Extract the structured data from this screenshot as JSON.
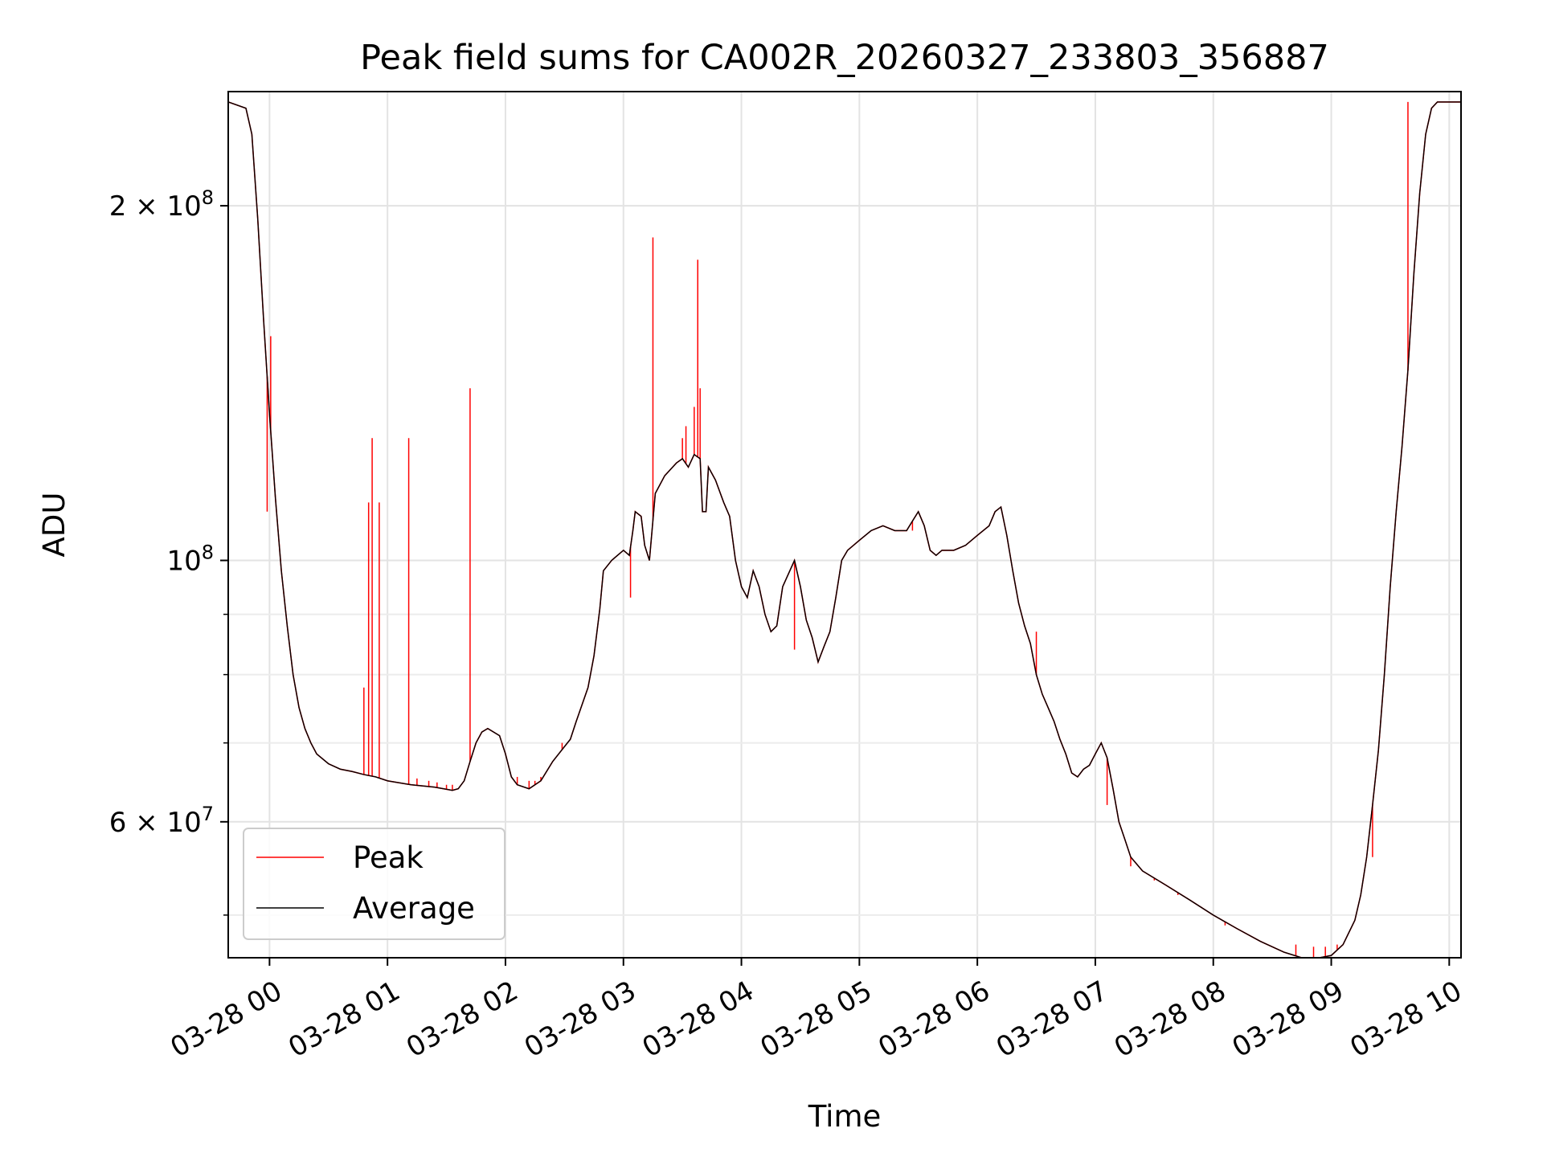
{
  "chart_data": {
    "type": "line",
    "title": "Peak field sums for CA002R_20260327_233803_356887",
    "xlabel": "Time",
    "ylabel": "ADU",
    "y_scale": "log",
    "grid": true,
    "legend_position": "lower-left",
    "xlim": [
      -0.35,
      10.1
    ],
    "ylim": [
      46000000.0,
      250000000.0
    ],
    "x_units": "hours since 2026-03-28 00:00",
    "x_ticks": [
      {
        "value": 0,
        "label": "03-28 00"
      },
      {
        "value": 1,
        "label": "03-28 01"
      },
      {
        "value": 2,
        "label": "03-28 02"
      },
      {
        "value": 3,
        "label": "03-28 03"
      },
      {
        "value": 4,
        "label": "03-28 04"
      },
      {
        "value": 5,
        "label": "03-28 05"
      },
      {
        "value": 6,
        "label": "03-28 06"
      },
      {
        "value": 7,
        "label": "03-28 07"
      },
      {
        "value": 8,
        "label": "03-28 08"
      },
      {
        "value": 9,
        "label": "03-28 09"
      },
      {
        "value": 10,
        "label": "03-28 10"
      }
    ],
    "y_major_ticks": [
      {
        "value": 60000000,
        "mantissa": "6",
        "exponent": "7"
      },
      {
        "value": 100000000,
        "mantissa": "",
        "exponent": "8"
      },
      {
        "value": 200000000,
        "mantissa": "2",
        "exponent": "8"
      }
    ],
    "y_minor_ticks": [
      50000000,
      70000000,
      80000000,
      90000000
    ],
    "series": [
      {
        "name": "Peak",
        "color": "#ff0000",
        "spikes": [
          [
            -0.02,
            110000000.0
          ],
          [
            0.01,
            155000000.0
          ],
          [
            0.2,
            80000000.0
          ],
          [
            0.8,
            78000000.0
          ],
          [
            0.84,
            112000000.0
          ],
          [
            0.87,
            127000000.0
          ],
          [
            0.93,
            112000000.0
          ],
          [
            1.18,
            127000000.0
          ],
          [
            1.25,
            65300000.0
          ],
          [
            1.35,
            65000000.0
          ],
          [
            1.42,
            64800000.0
          ],
          [
            1.5,
            64500000.0
          ],
          [
            1.55,
            64500000.0
          ],
          [
            1.7,
            140000000.0
          ],
          [
            2.1,
            65500000.0
          ],
          [
            2.2,
            65000000.0
          ],
          [
            2.25,
            65000000.0
          ],
          [
            2.3,
            65500000.0
          ],
          [
            2.48,
            70000000.0
          ],
          [
            2.7,
            78000000.0
          ],
          [
            3.06,
            93000000.0
          ],
          [
            3.25,
            188000000.0
          ],
          [
            3.5,
            127000000.0
          ],
          [
            3.53,
            130000000.0
          ],
          [
            3.6,
            135000000.0
          ],
          [
            3.63,
            180000000.0
          ],
          [
            3.65,
            140000000.0
          ],
          [
            4.45,
            84000000.0
          ],
          [
            5.45,
            106000000.0
          ],
          [
            6.5,
            87000000.0
          ],
          [
            7.1,
            62000000.0
          ],
          [
            7.3,
            55000000.0
          ],
          [
            7.5,
            53500000.0
          ],
          [
            7.7,
            52000000.0
          ],
          [
            7.9,
            50800000.0
          ],
          [
            8.1,
            49000000.0
          ],
          [
            8.4,
            47500000.0
          ],
          [
            8.7,
            47200000.0
          ],
          [
            8.85,
            47000000.0
          ],
          [
            8.95,
            47000000.0
          ],
          [
            9.05,
            47200000.0
          ],
          [
            9.35,
            56000000.0
          ],
          [
            9.65,
            245000000.0
          ]
        ]
      },
      {
        "name": "Average",
        "color": "#000000",
        "points": [
          [
            -0.35,
            245000000.0
          ],
          [
            -0.2,
            242000000.0
          ],
          [
            -0.15,
            230000000.0
          ],
          [
            -0.1,
            195000000.0
          ],
          [
            -0.05,
            160000000.0
          ],
          [
            0,
            133000000.0
          ],
          [
            0.05,
            113000000.0
          ],
          [
            0.1,
            98000000.0
          ],
          [
            0.15,
            88000000.0
          ],
          [
            0.2,
            80000000.0
          ],
          [
            0.25,
            75000000.0
          ],
          [
            0.3,
            72000000.0
          ],
          [
            0.35,
            70000000.0
          ],
          [
            0.4,
            68500000.0
          ],
          [
            0.5,
            67200000.0
          ],
          [
            0.6,
            66500000.0
          ],
          [
            0.7,
            66200000.0
          ],
          [
            0.8,
            65800000.0
          ],
          [
            0.9,
            65500000.0
          ],
          [
            1,
            65000000.0
          ],
          [
            1.2,
            64500000.0
          ],
          [
            1.4,
            64200000.0
          ],
          [
            1.55,
            63800000.0
          ],
          [
            1.6,
            64000000.0
          ],
          [
            1.65,
            65000000.0
          ],
          [
            1.7,
            67500000.0
          ],
          [
            1.75,
            70000000.0
          ],
          [
            1.8,
            71500000.0
          ],
          [
            1.85,
            72000000.0
          ],
          [
            1.95,
            71000000.0
          ],
          [
            2,
            68500000.0
          ],
          [
            2.05,
            65500000.0
          ],
          [
            2.1,
            64500000.0
          ],
          [
            2.2,
            64000000.0
          ],
          [
            2.3,
            65000000.0
          ],
          [
            2.4,
            67500000.0
          ],
          [
            2.5,
            69500000.0
          ],
          [
            2.55,
            70500000.0
          ],
          [
            2.6,
            73000000.0
          ],
          [
            2.7,
            78000000.0
          ],
          [
            2.75,
            83000000.0
          ],
          [
            2.8,
            91000000.0
          ],
          [
            2.83,
            98000000.0
          ],
          [
            2.9,
            100000000.0
          ],
          [
            2.95,
            101000000.0
          ],
          [
            3,
            102000000.0
          ],
          [
            3.05,
            101000000.0
          ],
          [
            3.08,
            106000000.0
          ],
          [
            3.1,
            110000000.0
          ],
          [
            3.15,
            109000000.0
          ],
          [
            3.18,
            103000000.0
          ],
          [
            3.22,
            100000000.0
          ],
          [
            3.27,
            114000000.0
          ],
          [
            3.35,
            118000000.0
          ],
          [
            3.45,
            121000000.0
          ],
          [
            3.5,
            122000000.0
          ],
          [
            3.55,
            120000000.0
          ],
          [
            3.6,
            123000000.0
          ],
          [
            3.65,
            122000000.0
          ],
          [
            3.67,
            110000000.0
          ],
          [
            3.7,
            110000000.0
          ],
          [
            3.72,
            120000000.0
          ],
          [
            3.78,
            117000000.0
          ],
          [
            3.85,
            112000000.0
          ],
          [
            3.9,
            109000000.0
          ],
          [
            3.95,
            100000000.0
          ],
          [
            4,
            95000000.0
          ],
          [
            4.05,
            93000000.0
          ],
          [
            4.1,
            98000000.0
          ],
          [
            4.15,
            95000000.0
          ],
          [
            4.2,
            90000000.0
          ],
          [
            4.25,
            87000000.0
          ],
          [
            4.3,
            88000000.0
          ],
          [
            4.35,
            95000000.0
          ],
          [
            4.45,
            100000000.0
          ],
          [
            4.5,
            95000000.0
          ],
          [
            4.55,
            89000000.0
          ],
          [
            4.6,
            86000000.0
          ],
          [
            4.65,
            82000000.0
          ],
          [
            4.7,
            84500000.0
          ],
          [
            4.75,
            87000000.0
          ],
          [
            4.8,
            93000000.0
          ],
          [
            4.85,
            100000000.0
          ],
          [
            4.9,
            102000000.0
          ],
          [
            5,
            104000000.0
          ],
          [
            5.1,
            106000000.0
          ],
          [
            5.2,
            107000000.0
          ],
          [
            5.3,
            106000000.0
          ],
          [
            5.4,
            106000000.0
          ],
          [
            5.45,
            108000000.0
          ],
          [
            5.5,
            110000000.0
          ],
          [
            5.55,
            107000000.0
          ],
          [
            5.6,
            102000000.0
          ],
          [
            5.65,
            101000000.0
          ],
          [
            5.7,
            102000000.0
          ],
          [
            5.8,
            102000000.0
          ],
          [
            5.9,
            103000000.0
          ],
          [
            6,
            105000000.0
          ],
          [
            6.1,
            107000000.0
          ],
          [
            6.15,
            110000000.0
          ],
          [
            6.2,
            111000000.0
          ],
          [
            6.25,
            105000000.0
          ],
          [
            6.3,
            98000000.0
          ],
          [
            6.35,
            92000000.0
          ],
          [
            6.4,
            88000000.0
          ],
          [
            6.45,
            85000000.0
          ],
          [
            6.5,
            80000000.0
          ],
          [
            6.55,
            77000000.0
          ],
          [
            6.6,
            75000000.0
          ],
          [
            6.65,
            73000000.0
          ],
          [
            6.7,
            70500000.0
          ],
          [
            6.75,
            68500000.0
          ],
          [
            6.8,
            66000000.0
          ],
          [
            6.85,
            65500000.0
          ],
          [
            6.9,
            66500000.0
          ],
          [
            6.95,
            67000000.0
          ],
          [
            7,
            68500000.0
          ],
          [
            7.05,
            70000000.0
          ],
          [
            7.1,
            68000000.0
          ],
          [
            7.15,
            64000000.0
          ],
          [
            7.2,
            60000000.0
          ],
          [
            7.25,
            58000000.0
          ],
          [
            7.3,
            56000000.0
          ],
          [
            7.4,
            54500000.0
          ],
          [
            7.6,
            53000000.0
          ],
          [
            7.8,
            51500000.0
          ],
          [
            8,
            50000000.0
          ],
          [
            8.2,
            48700000.0
          ],
          [
            8.4,
            47500000.0
          ],
          [
            8.6,
            46500000.0
          ],
          [
            8.75,
            46000000.0
          ],
          [
            8.9,
            46000000.0
          ],
          [
            9,
            46200000.0
          ],
          [
            9.1,
            47200000.0
          ],
          [
            9.2,
            49500000.0
          ],
          [
            9.25,
            52000000.0
          ],
          [
            9.3,
            56000000.0
          ],
          [
            9.35,
            62000000.0
          ],
          [
            9.4,
            69000000.0
          ],
          [
            9.45,
            80000000.0
          ],
          [
            9.5,
            95000000.0
          ],
          [
            9.55,
            110000000.0
          ],
          [
            9.6,
            125000000.0
          ],
          [
            9.65,
            145000000.0
          ],
          [
            9.7,
            175000000.0
          ],
          [
            9.75,
            205000000.0
          ],
          [
            9.8,
            230000000.0
          ],
          [
            9.85,
            242000000.0
          ],
          [
            9.9,
            245000000.0
          ],
          [
            10.1,
            245000000.0
          ]
        ]
      }
    ]
  }
}
